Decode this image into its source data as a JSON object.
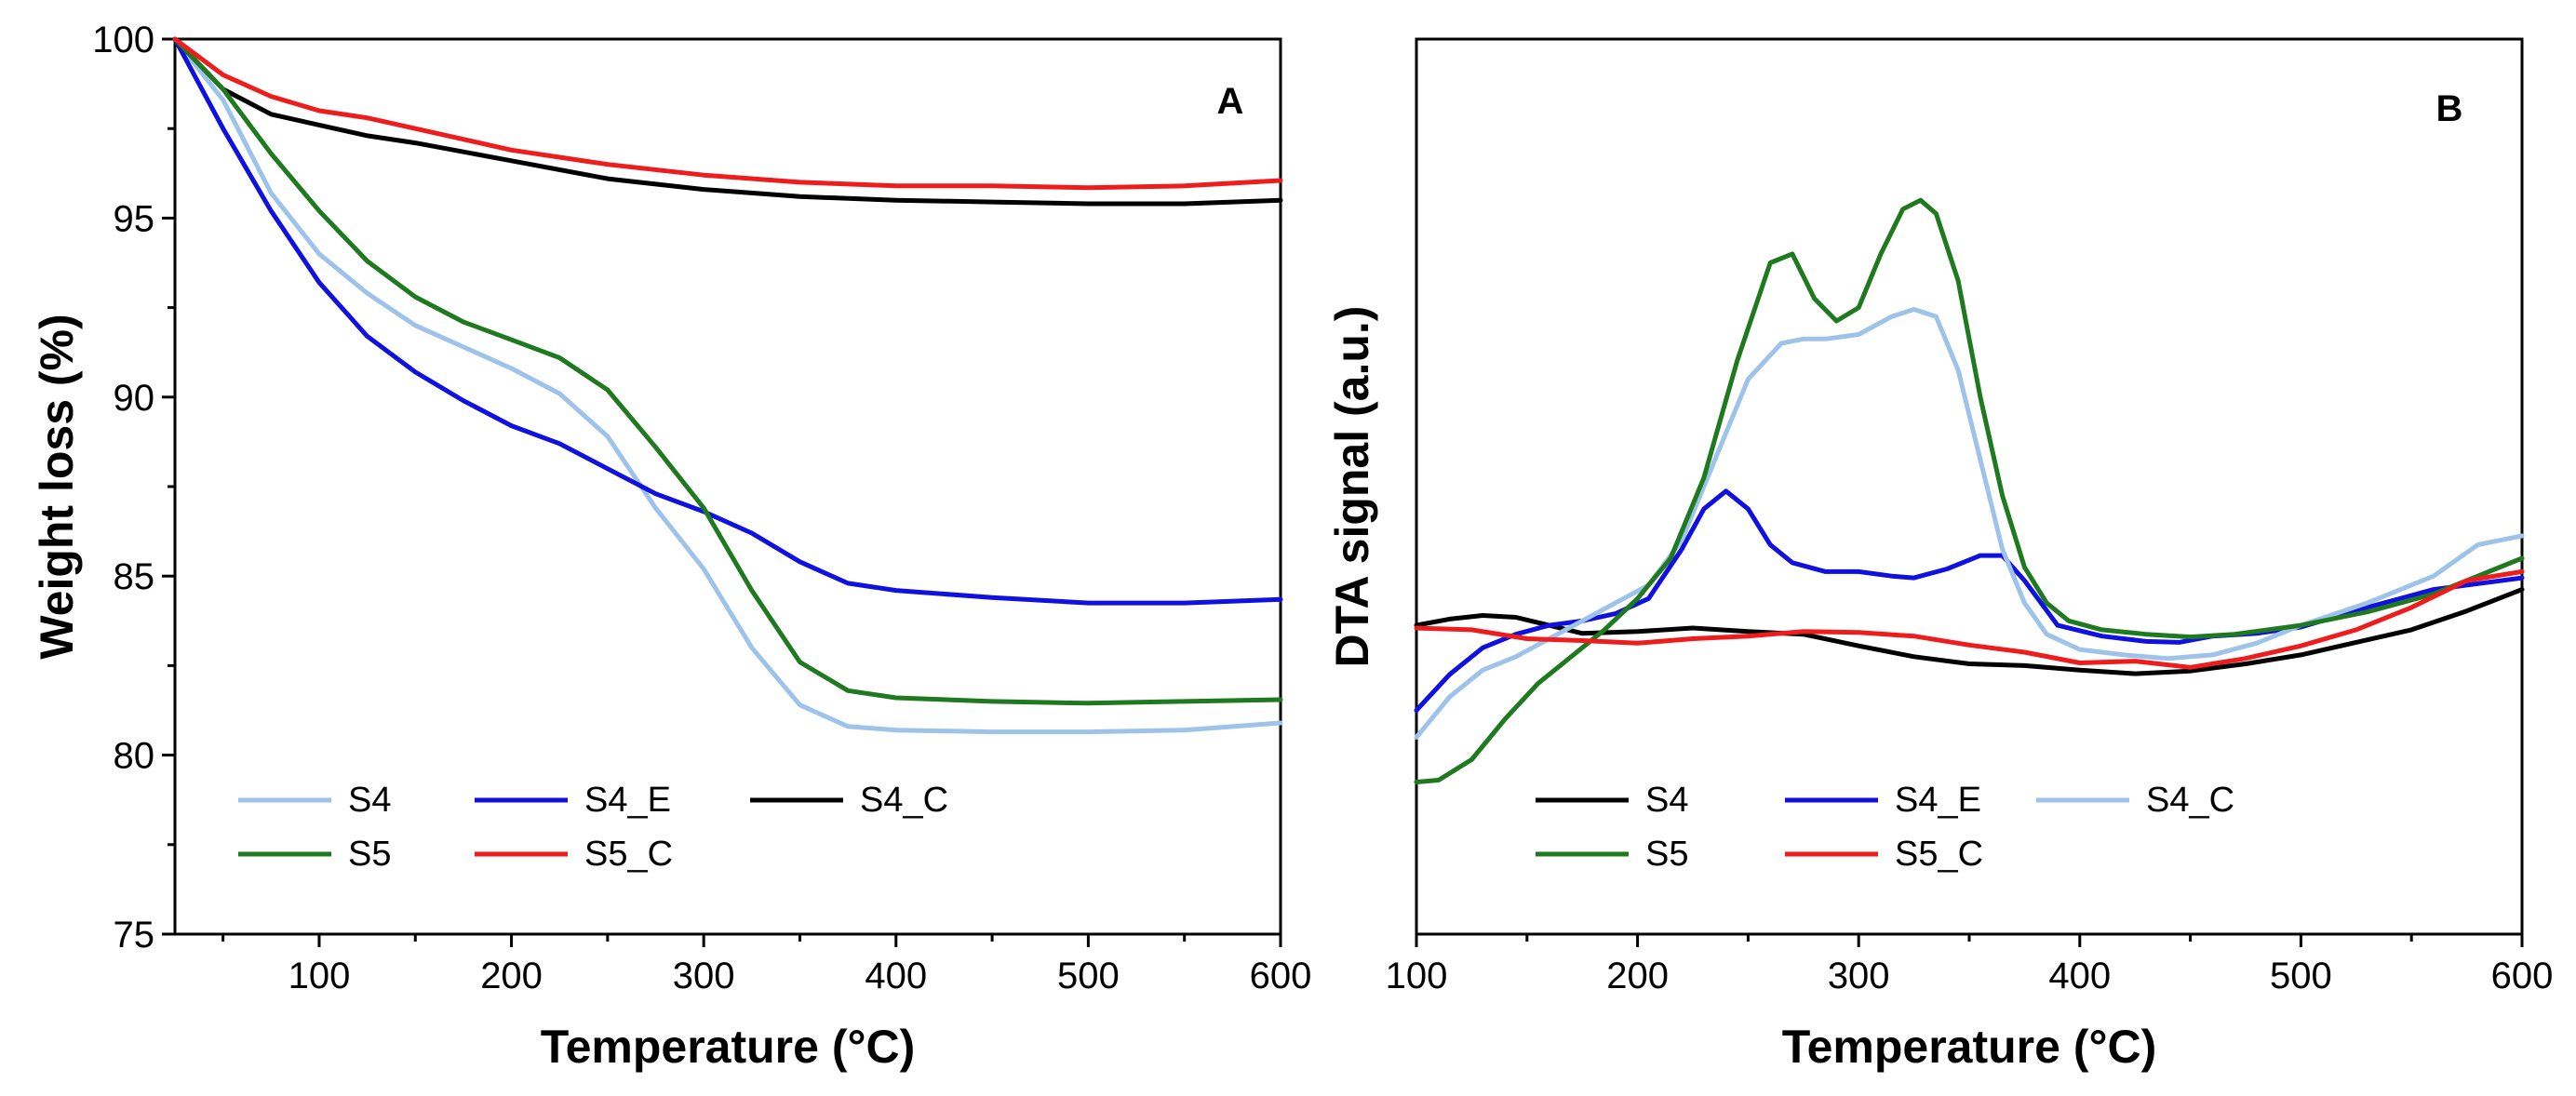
{
  "chart_data": [
    {
      "panel": "A",
      "type": "line",
      "title": "",
      "xlabel": "Temperature (°C)",
      "ylabel": "Weight loss (%)",
      "xlim": [
        25,
        600
      ],
      "ylim": [
        75,
        100
      ],
      "xticks": [
        100,
        200,
        300,
        400,
        500,
        600
      ],
      "yticks": [
        75,
        80,
        85,
        90,
        95,
        100
      ],
      "grid": false,
      "legend_position": "bottom",
      "series": [
        {
          "name": "S4",
          "color": "#9ec3ea",
          "x": [
            25,
            50,
            75,
            100,
            125,
            150,
            175,
            200,
            225,
            250,
            275,
            300,
            325,
            350,
            375,
            400,
            450,
            500,
            550,
            600
          ],
          "y": [
            100,
            98.3,
            95.7,
            94.0,
            92.9,
            92.0,
            91.4,
            90.8,
            90.1,
            88.9,
            86.9,
            85.2,
            83.0,
            81.4,
            80.8,
            80.7,
            80.65,
            80.65,
            80.7,
            80.9
          ]
        },
        {
          "name": "S4_E",
          "color": "#1010e0",
          "x": [
            25,
            50,
            75,
            100,
            125,
            150,
            175,
            200,
            225,
            250,
            275,
            300,
            325,
            350,
            375,
            400,
            450,
            500,
            550,
            600
          ],
          "y": [
            100,
            97.5,
            95.2,
            93.2,
            91.7,
            90.7,
            89.9,
            89.2,
            88.7,
            88.0,
            87.3,
            86.8,
            86.2,
            85.4,
            84.8,
            84.6,
            84.4,
            84.25,
            84.25,
            84.35
          ]
        },
        {
          "name": "S4_C",
          "color": "#000000",
          "x": [
            25,
            50,
            75,
            100,
            125,
            150,
            200,
            250,
            300,
            350,
            400,
            450,
            500,
            550,
            600
          ],
          "y": [
            100,
            98.6,
            97.9,
            97.6,
            97.3,
            97.1,
            96.6,
            96.1,
            95.8,
            95.6,
            95.5,
            95.45,
            95.4,
            95.4,
            95.5
          ]
        },
        {
          "name": "S5",
          "color": "#1f7a1f",
          "x": [
            25,
            50,
            75,
            100,
            125,
            150,
            175,
            200,
            225,
            250,
            275,
            300,
            325,
            350,
            375,
            400,
            450,
            500,
            550,
            600
          ],
          "y": [
            100,
            98.6,
            96.8,
            95.2,
            93.8,
            92.8,
            92.1,
            91.6,
            91.1,
            90.2,
            88.6,
            86.9,
            84.6,
            82.6,
            81.8,
            81.6,
            81.5,
            81.45,
            81.5,
            81.55
          ]
        },
        {
          "name": "S5_C",
          "color": "#ee1c1c",
          "x": [
            25,
            50,
            75,
            100,
            125,
            150,
            200,
            250,
            300,
            350,
            400,
            450,
            500,
            550,
            600
          ],
          "y": [
            100,
            99.0,
            98.4,
            98.0,
            97.8,
            97.5,
            96.9,
            96.5,
            96.2,
            96.0,
            95.9,
            95.9,
            95.85,
            95.9,
            96.05
          ]
        }
      ]
    },
    {
      "panel": "B",
      "type": "line",
      "title": "",
      "xlabel": "Temperature (°C)",
      "ylabel": "DTA signal (a.u.)",
      "xlim": [
        100,
        600
      ],
      "ylim": [
        0,
        100
      ],
      "xticks": [
        100,
        200,
        300,
        400,
        500,
        600
      ],
      "yticks": [],
      "grid": false,
      "legend_position": "bottom",
      "series": [
        {
          "name": "S4",
          "color": "#000000",
          "x": [
            100,
            115,
            130,
            145,
            160,
            175,
            200,
            225,
            250,
            275,
            300,
            325,
            350,
            375,
            400,
            425,
            450,
            475,
            500,
            525,
            550,
            575,
            600
          ],
          "y": [
            34.5,
            35.2,
            35.6,
            35.4,
            34.5,
            33.6,
            33.8,
            34.2,
            33.8,
            33.5,
            32.2,
            31.0,
            30.2,
            30.0,
            29.5,
            29.1,
            29.4,
            30.2,
            31.2,
            32.6,
            34.0,
            36.1,
            38.5
          ]
        },
        {
          "name": "S4_E",
          "color": "#1010e0",
          "x": [
            100,
            115,
            130,
            145,
            160,
            175,
            190,
            205,
            220,
            230,
            240,
            250,
            260,
            270,
            285,
            300,
            315,
            325,
            340,
            355,
            365,
            375,
            390,
            410,
            430,
            445,
            460,
            480,
            500,
            530,
            560,
            600
          ],
          "y": [
            25,
            29,
            32,
            33.5,
            34.5,
            35.0,
            35.8,
            37.5,
            43,
            47.5,
            49.5,
            47.5,
            43.5,
            41.5,
            40.5,
            40.5,
            40.0,
            39.8,
            40.8,
            42.3,
            42.3,
            39.5,
            34.5,
            33.3,
            32.7,
            32.6,
            33.3,
            33.6,
            34.3,
            36.5,
            38.5,
            39.8
          ]
        },
        {
          "name": "S4_C",
          "color": "#9ec3ea",
          "x": [
            100,
            115,
            130,
            145,
            160,
            175,
            190,
            205,
            220,
            235,
            250,
            265,
            275,
            285,
            300,
            315,
            325,
            335,
            345,
            355,
            365,
            375,
            385,
            400,
            420,
            440,
            460,
            480,
            500,
            530,
            560,
            580,
            600
          ],
          "y": [
            22,
            26.5,
            29.5,
            31,
            33,
            35,
            37,
            39,
            44,
            53,
            62,
            66,
            66.5,
            66.5,
            67,
            69,
            69.8,
            69,
            63,
            53,
            43,
            37,
            33.5,
            31.8,
            31.2,
            30.8,
            31.2,
            32.5,
            34.5,
            37,
            40,
            43.5,
            44.5
          ]
        },
        {
          "name": "S5",
          "color": "#1f7a1f",
          "x": [
            100,
            110,
            125,
            140,
            155,
            170,
            185,
            200,
            215,
            230,
            245,
            260,
            270,
            280,
            290,
            300,
            310,
            320,
            328,
            335,
            345,
            355,
            365,
            375,
            385,
            395,
            410,
            430,
            450,
            470,
            500,
            530,
            560,
            600
          ],
          "y": [
            17,
            17.2,
            19.5,
            24,
            28,
            31,
            34,
            37.5,
            42,
            51,
            64,
            75,
            76,
            71,
            68.5,
            70,
            76,
            81,
            82,
            80.5,
            73,
            60,
            49,
            41,
            37,
            35,
            34,
            33.5,
            33.2,
            33.5,
            34.5,
            36,
            38,
            42
          ]
        },
        {
          "name": "S5_C",
          "color": "#ee1c1c",
          "x": [
            100,
            125,
            150,
            175,
            200,
            225,
            250,
            275,
            300,
            325,
            350,
            375,
            400,
            425,
            450,
            475,
            500,
            525,
            550,
            575,
            600
          ],
          "y": [
            34.2,
            34.0,
            33.0,
            32.8,
            32.5,
            33.0,
            33.3,
            33.8,
            33.7,
            33.3,
            32.3,
            31.5,
            30.3,
            30.5,
            29.8,
            30.8,
            32.2,
            34.0,
            36.5,
            39.5,
            40.5
          ]
        }
      ]
    }
  ],
  "panels": [
    {
      "label": "A",
      "xlabel": "Temperature (°C)",
      "ylabel": "Weight loss (%)"
    },
    {
      "label": "B",
      "xlabel": "Temperature (°C)",
      "ylabel": "DTA signal (a.u.)"
    }
  ]
}
